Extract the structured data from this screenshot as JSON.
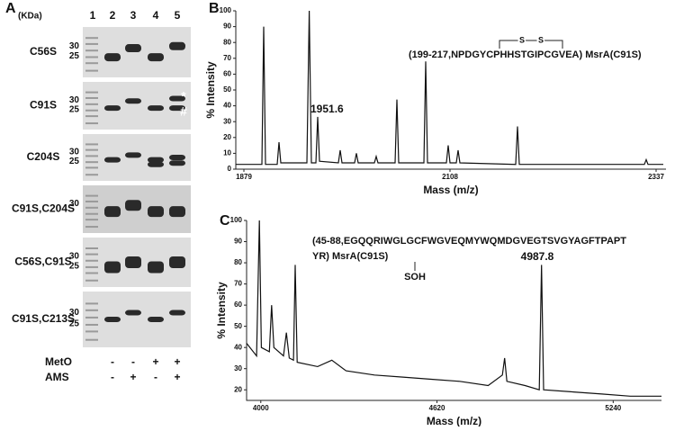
{
  "gel": {
    "panel_label": "A",
    "unit": "(KDa)",
    "lanes": [
      "1",
      "2",
      "3",
      "4",
      "5"
    ],
    "rows": [
      {
        "label": "C56S",
        "markers": [
          "30",
          "25"
        ]
      },
      {
        "label": "C91S",
        "markers": [
          "30",
          "25"
        ],
        "marks": [
          "*",
          "#"
        ]
      },
      {
        "label": "C204S",
        "markers": [
          "30",
          "25"
        ]
      },
      {
        "label": "C91S,C204S",
        "markers": [
          "30"
        ]
      },
      {
        "label": "C56S,C91S",
        "markers": [
          "30",
          "25"
        ]
      },
      {
        "label": "C91S,C213S",
        "markers": [
          "30",
          "25"
        ]
      }
    ],
    "conditions": [
      {
        "label": "MetO",
        "signs": [
          "-",
          "-",
          "+",
          "+"
        ]
      },
      {
        "label": "AMS",
        "signs": [
          "-",
          "+",
          "-",
          "+"
        ]
      }
    ]
  },
  "chart_data": [
    {
      "type": "line",
      "panel_label": "B",
      "xlabel": "Mass (m/z)",
      "ylabel": "% Intensity",
      "annotations": [
        "(199-217,NPDGYCPHHSTGIPCGVEA) MsrA(C91S)",
        "S",
        "S",
        "1951.6"
      ],
      "xlim": [
        1870,
        2348
      ],
      "xticks": [
        1879,
        2108,
        2337
      ],
      "ylim": [
        0,
        100
      ],
      "yticks": [
        0,
        10,
        20,
        30,
        40,
        50,
        60,
        70,
        80,
        90,
        100
      ],
      "series": [
        {
          "color": "#111111",
          "x": [
            1870,
            1899,
            1901,
            1903,
            1916,
            1918,
            1920,
            1949,
            1951.6,
            1954,
            1959,
            1961,
            1963,
            1984,
            1986,
            1988,
            2002,
            2004,
            2006,
            2024,
            2026,
            2028,
            2047,
            2049,
            2051,
            2079,
            2081,
            2083,
            2104,
            2106,
            2108,
            2115,
            2117,
            2119,
            2181,
            2183,
            2185,
            2324,
            2326,
            2328,
            2345
          ],
          "values": [
            3,
            3,
            90,
            3,
            3,
            17,
            4,
            4,
            100,
            4,
            4,
            33,
            5,
            4,
            12,
            4,
            4,
            10,
            4,
            4,
            8,
            4,
            4,
            44,
            4,
            4,
            68,
            4,
            4,
            15,
            4,
            4,
            12,
            4,
            3,
            27,
            3,
            3,
            6,
            3,
            3
          ]
        }
      ]
    },
    {
      "type": "line",
      "panel_label": "C",
      "xlabel": "Mass (m/z)",
      "ylabel": "% Intensity",
      "annotations": [
        "(45-88,EGQQRIWGLGCFWGVEQMYWQMDGVEGTSVGYAGFTPAPT",
        "YR) MsrA(C91S)",
        "SOH",
        "4987.8"
      ],
      "xlim": [
        3950,
        5410
      ],
      "xticks": [
        4000,
        4620,
        5240
      ],
      "ylim": [
        15,
        100
      ],
      "yticks": [
        20,
        30,
        40,
        50,
        60,
        70,
        80,
        90,
        100
      ],
      "series": [
        {
          "color": "#111111",
          "x": [
            3950,
            3985,
            3995,
            4002,
            4030,
            4038,
            4046,
            4080,
            4090,
            4100,
            4115,
            4121,
            4128,
            4200,
            4250,
            4300,
            4400,
            4500,
            4600,
            4700,
            4800,
            4850,
            4858,
            4866,
            4930,
            4980,
            4987.8,
            4995,
            5100,
            5200,
            5300,
            5410
          ],
          "values": [
            42,
            36,
            100,
            40,
            38,
            60,
            40,
            36,
            47,
            35,
            34,
            79,
            33,
            31,
            34,
            29,
            27,
            26,
            25,
            24,
            22,
            27,
            35,
            24,
            22,
            20,
            79,
            20,
            19,
            18,
            17,
            17
          ]
        }
      ]
    }
  ]
}
